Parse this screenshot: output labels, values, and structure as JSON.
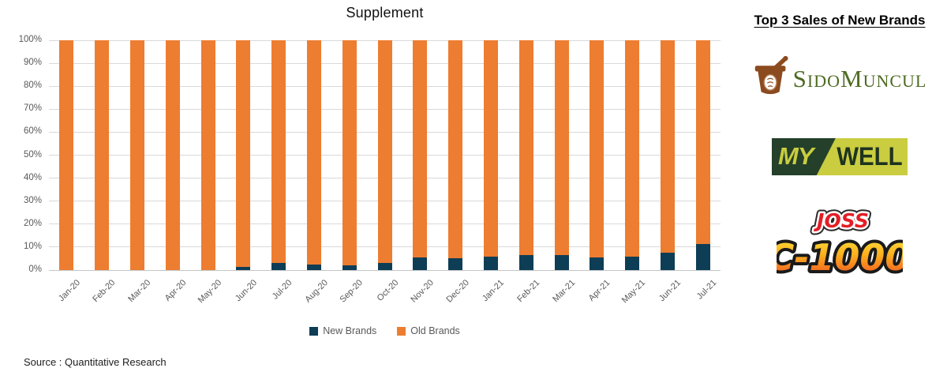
{
  "chart": {
    "title": "Supplement",
    "legend": [
      {
        "label": "New Brands",
        "color": "#0e3d56"
      },
      {
        "label": "Old Brands",
        "color": "#ed7d31"
      }
    ]
  },
  "chart_data": {
    "type": "bar",
    "stacked": true,
    "title": "Supplement",
    "xlabel": "",
    "ylabel": "",
    "ylim": [
      0,
      100
    ],
    "ytick_step": 10,
    "ytick_labels": [
      "0%",
      "10%",
      "20%",
      "30%",
      "40%",
      "50%",
      "60%",
      "70%",
      "80%",
      "90%",
      "100%"
    ],
    "grid": true,
    "legend_position": "bottom",
    "categories": [
      "Jan-20",
      "Feb-20",
      "Mar-20",
      "Apr-20",
      "May-20",
      "Jun-20",
      "Jul-20",
      "Aug-20",
      "Sep-20",
      "Oct-20",
      "Nov-20",
      "Dec-20",
      "Jan-21",
      "Feb-21",
      "Mar-21",
      "Apr-21",
      "May-21",
      "Jun-21",
      "Jul-21"
    ],
    "series": [
      {
        "name": "New Brands",
        "color": "#0e3d56",
        "values": [
          0,
          0,
          0,
          0,
          0,
          1.5,
          3,
          2.5,
          2,
          3,
          5.5,
          5,
          6,
          6.5,
          6.5,
          5.5,
          6,
          7.5,
          11.5
        ]
      },
      {
        "name": "Old Brands",
        "color": "#ed7d31",
        "values": [
          100,
          100,
          100,
          100,
          100,
          98.5,
          97,
          97.5,
          98,
          97,
          94.5,
          95,
          94,
          93.5,
          93.5,
          94.5,
          94,
          92.5,
          88.5
        ]
      }
    ]
  },
  "source_text": "Source : Quantitative Research",
  "panel": {
    "title": "Top 3 Sales of New Brands",
    "brands": [
      {
        "name": "SidoMuncul",
        "parts": [
          "S",
          "IDO",
          "M",
          "UNCUL"
        ]
      },
      {
        "name": "My Well",
        "parts": [
          "MY",
          "WELL"
        ]
      },
      {
        "name": "Joss C-1000",
        "parts": [
          "JOSS",
          "C-1000"
        ]
      }
    ]
  }
}
